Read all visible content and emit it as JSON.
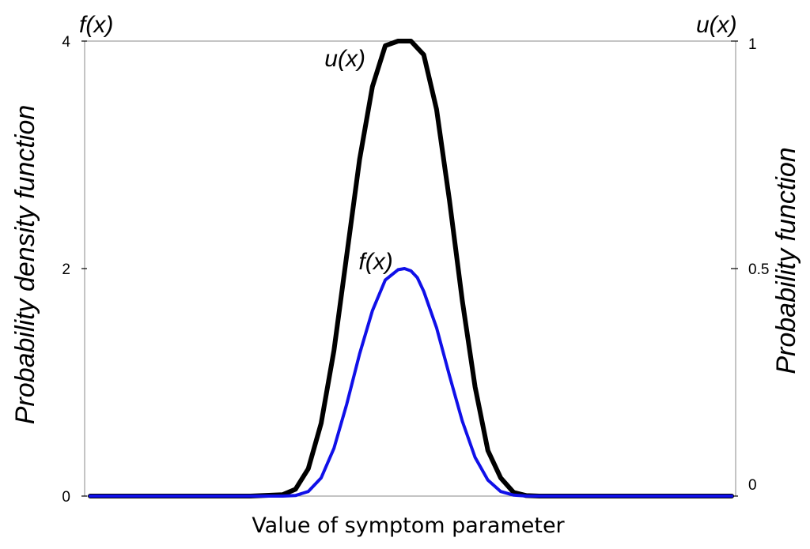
{
  "chart_data": {
    "type": "line",
    "title": "",
    "xlabel": "Value of symptom parameter",
    "ylabel_left": "Probability density function",
    "ylabel_right": "Probability function",
    "left_axis_corner_label": "f(x)",
    "right_axis_corner_label": "u(x)",
    "ylim_left": [
      0,
      4
    ],
    "ylim_right": [
      0,
      1
    ],
    "xlim": [
      0,
      1
    ],
    "left_ticks": [
      "0",
      "2",
      "4"
    ],
    "right_ticks": [
      "0",
      "0.5",
      "1"
    ],
    "x_tick_labels": [],
    "grid": false,
    "legend": "none",
    "series": [
      {
        "name": "u(x)",
        "axis": "right",
        "color": "#000000",
        "label_position": "upper-left of peak",
        "x": [
          0.0,
          0.05,
          0.1,
          0.15,
          0.2,
          0.25,
          0.3,
          0.32,
          0.34,
          0.36,
          0.38,
          0.4,
          0.42,
          0.44,
          0.46,
          0.48,
          0.5,
          0.52,
          0.54,
          0.56,
          0.58,
          0.6,
          0.62,
          0.64,
          0.66,
          0.68,
          0.7,
          0.75,
          0.8,
          0.85,
          0.9,
          0.95,
          1.0
        ],
        "values": [
          0,
          0,
          0,
          0,
          0,
          0,
          0.003,
          0.015,
          0.06,
          0.16,
          0.32,
          0.53,
          0.74,
          0.9,
          0.99,
          1.0,
          1.0,
          0.97,
          0.85,
          0.65,
          0.43,
          0.24,
          0.1,
          0.04,
          0.008,
          0.001,
          0,
          0,
          0,
          0,
          0,
          0,
          0
        ]
      },
      {
        "name": "f(x)",
        "axis": "left",
        "color": "#1010e8",
        "label_position": "upper-left of peak",
        "x": [
          0.0,
          0.05,
          0.1,
          0.15,
          0.2,
          0.25,
          0.3,
          0.32,
          0.34,
          0.36,
          0.38,
          0.4,
          0.42,
          0.44,
          0.46,
          0.48,
          0.49,
          0.5,
          0.51,
          0.52,
          0.54,
          0.56,
          0.58,
          0.6,
          0.62,
          0.64,
          0.66,
          0.68,
          0.7,
          0.75,
          0.8,
          0.85,
          0.9,
          0.95,
          1.0
        ],
        "values": [
          0,
          0,
          0,
          0,
          0,
          0,
          0,
          0.005,
          0.04,
          0.16,
          0.42,
          0.81,
          1.25,
          1.63,
          1.9,
          1.99,
          2.0,
          1.98,
          1.92,
          1.8,
          1.48,
          1.06,
          0.66,
          0.34,
          0.14,
          0.04,
          0.008,
          0.001,
          0,
          0,
          0,
          0,
          0,
          0,
          0
        ]
      }
    ]
  }
}
